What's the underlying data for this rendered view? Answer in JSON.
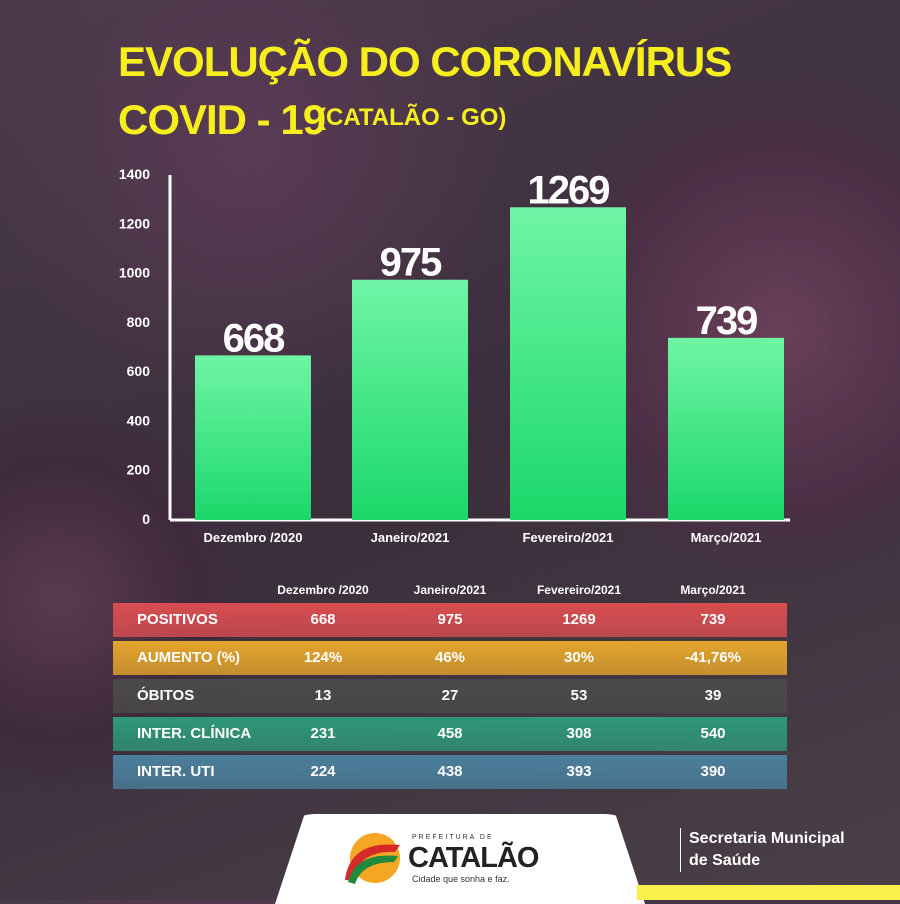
{
  "title_line1": "EVOLUÇÃO DO CORONAVÍRUS",
  "title_line2": "COVID - 19",
  "title_location": "(CATALÃO - GO)",
  "chart_data": {
    "type": "bar",
    "categories": [
      "Dezembro /2020",
      "Janeiro/2021",
      "Fevereiro/2021",
      "Março/2021"
    ],
    "values": [
      668,
      975,
      1269,
      739
    ],
    "data_labels": [
      "668",
      "975",
      "1269",
      "739"
    ],
    "yticks": [
      "0",
      "200",
      "400",
      "600",
      "800",
      "1000",
      "1200",
      "1400"
    ],
    "ylim": [
      0,
      1400
    ],
    "bar_color": "#2fe07a"
  },
  "table": {
    "headers": [
      "Dezembro /2020",
      "Janeiro/2021",
      "Fevereiro/2021",
      "Março/2021"
    ],
    "rows": [
      {
        "label": "POSITIVOS",
        "values": [
          "668",
          "975",
          "1269",
          "739"
        ],
        "color": "#d94d50"
      },
      {
        "label": "AUMENTO (%)",
        "values": [
          "124%",
          "46%",
          "30%",
          "-41,76%"
        ],
        "color": "#e4a52c"
      },
      {
        "label": "ÓBITOS",
        "values": [
          "13",
          "27",
          "53",
          "39"
        ],
        "color": "#4a4a4a"
      },
      {
        "label": "INTER. CLÍNICA",
        "values": [
          "231",
          "458",
          "308",
          "540"
        ],
        "color": "#2e9877"
      },
      {
        "label": "INTER. UTI",
        "values": [
          "224",
          "438",
          "393",
          "390"
        ],
        "color": "#4a7f9c"
      }
    ]
  },
  "footer": {
    "logo_prefix": "PREFEITURA DE",
    "logo_name": "CATALÃO",
    "logo_tagline": "Cidade que sonha e faz.",
    "secretaria_line1": "Secretaria Municipal",
    "secretaria_line2": "de Saúde"
  }
}
